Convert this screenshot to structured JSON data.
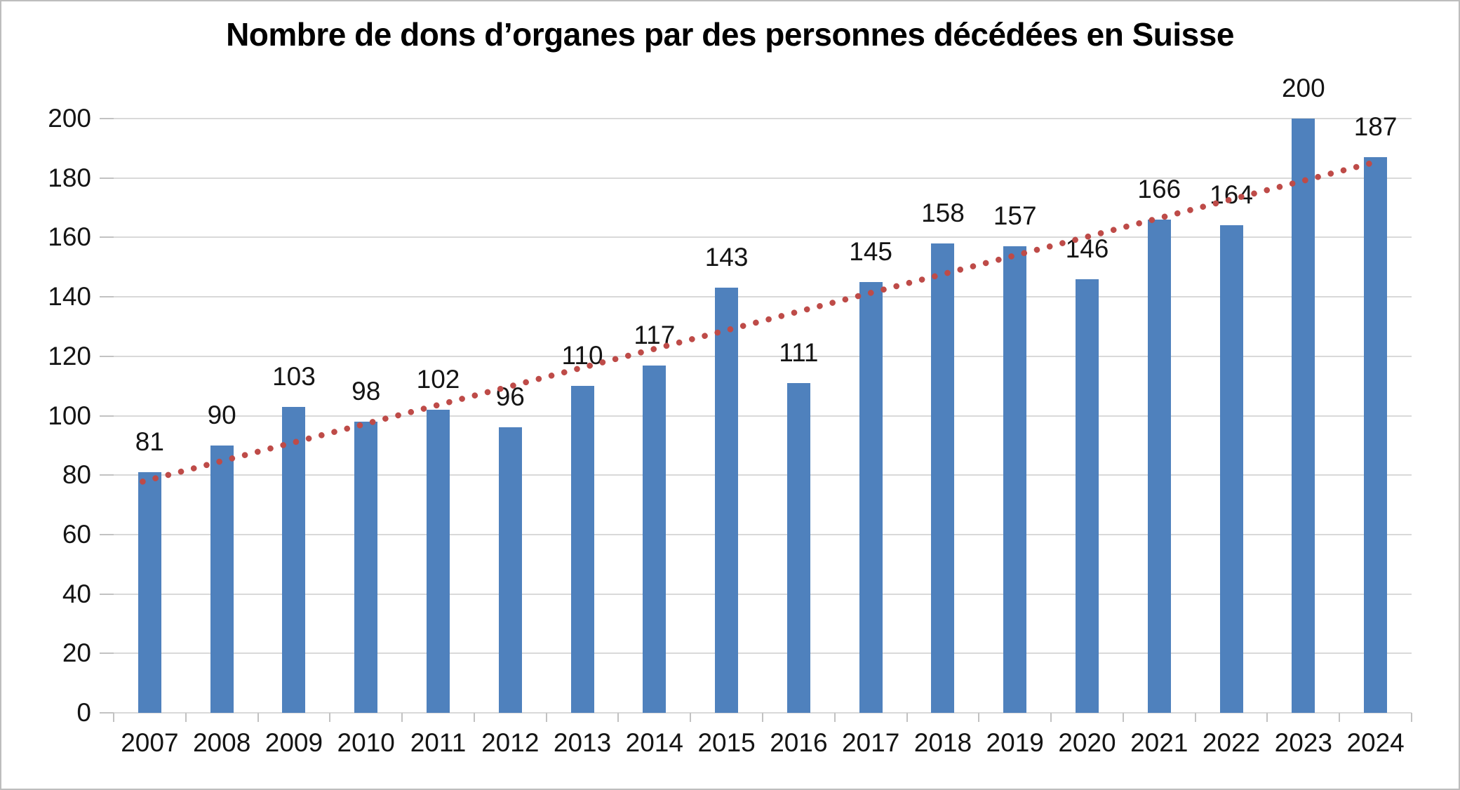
{
  "chart_data": {
    "type": "bar",
    "title": "Nombre de dons d’organes par des personnes décédées en Suisse",
    "categories": [
      "2007",
      "2008",
      "2009",
      "2010",
      "2011",
      "2012",
      "2013",
      "2014",
      "2015",
      "2016",
      "2017",
      "2018",
      "2019",
      "2020",
      "2021",
      "2022",
      "2023",
      "2024"
    ],
    "values": [
      81,
      90,
      103,
      98,
      102,
      96,
      110,
      117,
      143,
      111,
      145,
      158,
      157,
      146,
      166,
      164,
      200,
      187
    ],
    "xlabel": "",
    "ylabel": "",
    "ylim": [
      0,
      200
    ],
    "ytick_step": 20,
    "ytick_labels": [
      "0",
      "20",
      "40",
      "60",
      "80",
      "100",
      "120",
      "140",
      "160",
      "180",
      "200"
    ],
    "grid": true,
    "legend": false,
    "data_labels": true,
    "bar_color": "#4F81BD",
    "gridline_color": "#D9D9D9",
    "tick_color": "#C2C2C2",
    "text_color": "#141414",
    "background_color": "#FFFFFF",
    "border_color": "#BDBDBD",
    "trendline": {
      "type": "linear",
      "style": "dotted",
      "color": "#BE4B48",
      "start_value": 78.3,
      "end_value": 185.5
    }
  }
}
